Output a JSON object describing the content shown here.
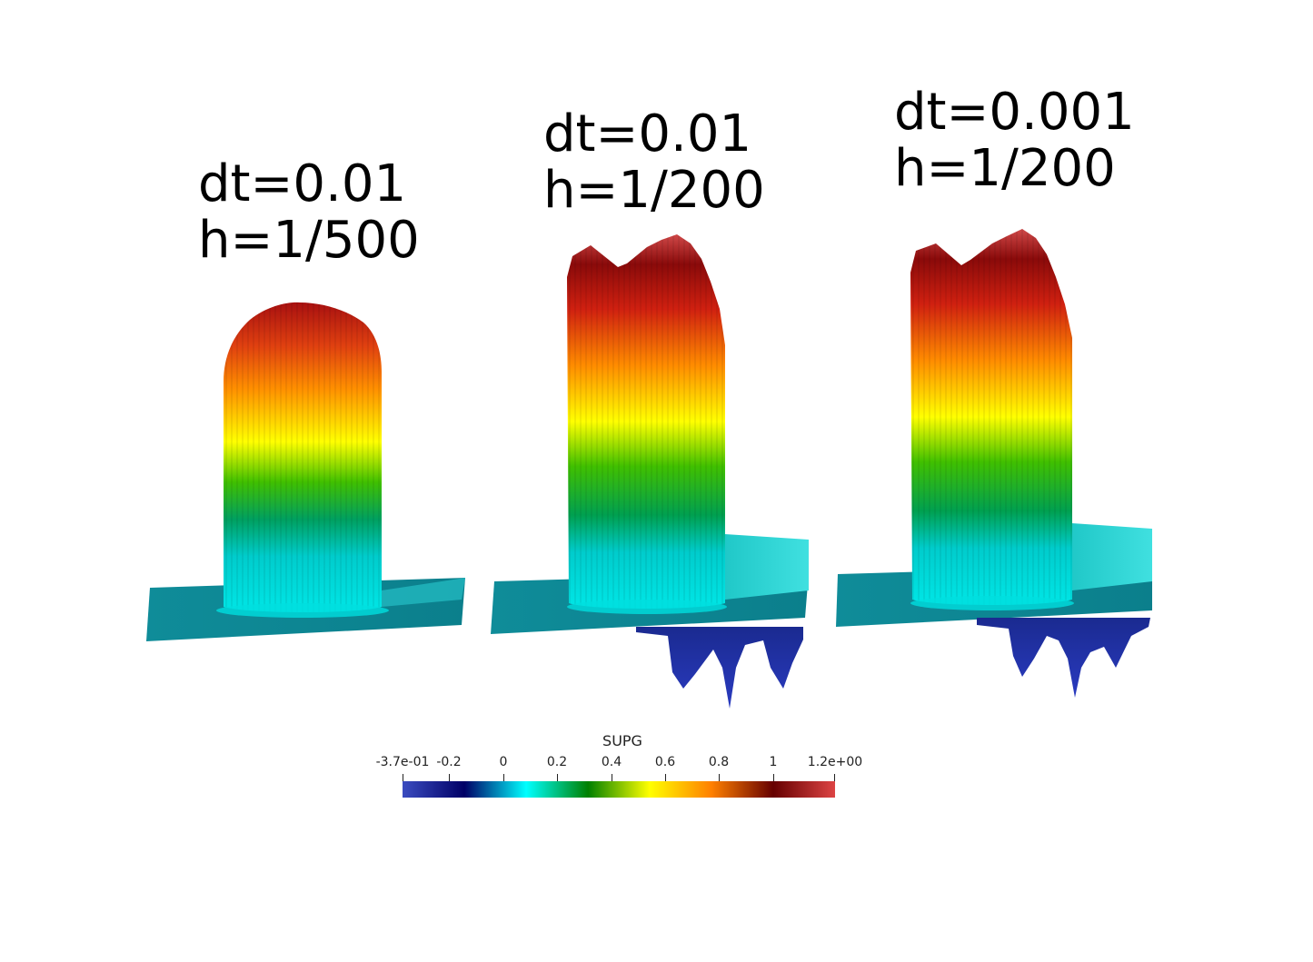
{
  "panels": [
    {
      "dt_label": "dt=0.01",
      "h_label": "h=1/500"
    },
    {
      "dt_label": "dt=0.01",
      "h_label": "h=1/200"
    },
    {
      "dt_label": "dt=0.001",
      "h_label": "h=1/200"
    }
  ],
  "colorbar": {
    "title": "SUPG",
    "min_label": "-3.7e-01",
    "max_label": "1.2e+00",
    "ticks": [
      "-0.2",
      "0",
      "0.2",
      "0.4",
      "0.6",
      "0.8",
      "1"
    ],
    "colors": [
      "#3b4cc0",
      "#000066",
      "#00ffff",
      "#008000",
      "#ffff00",
      "#ff8000",
      "#660000",
      "#dd4444"
    ]
  }
}
